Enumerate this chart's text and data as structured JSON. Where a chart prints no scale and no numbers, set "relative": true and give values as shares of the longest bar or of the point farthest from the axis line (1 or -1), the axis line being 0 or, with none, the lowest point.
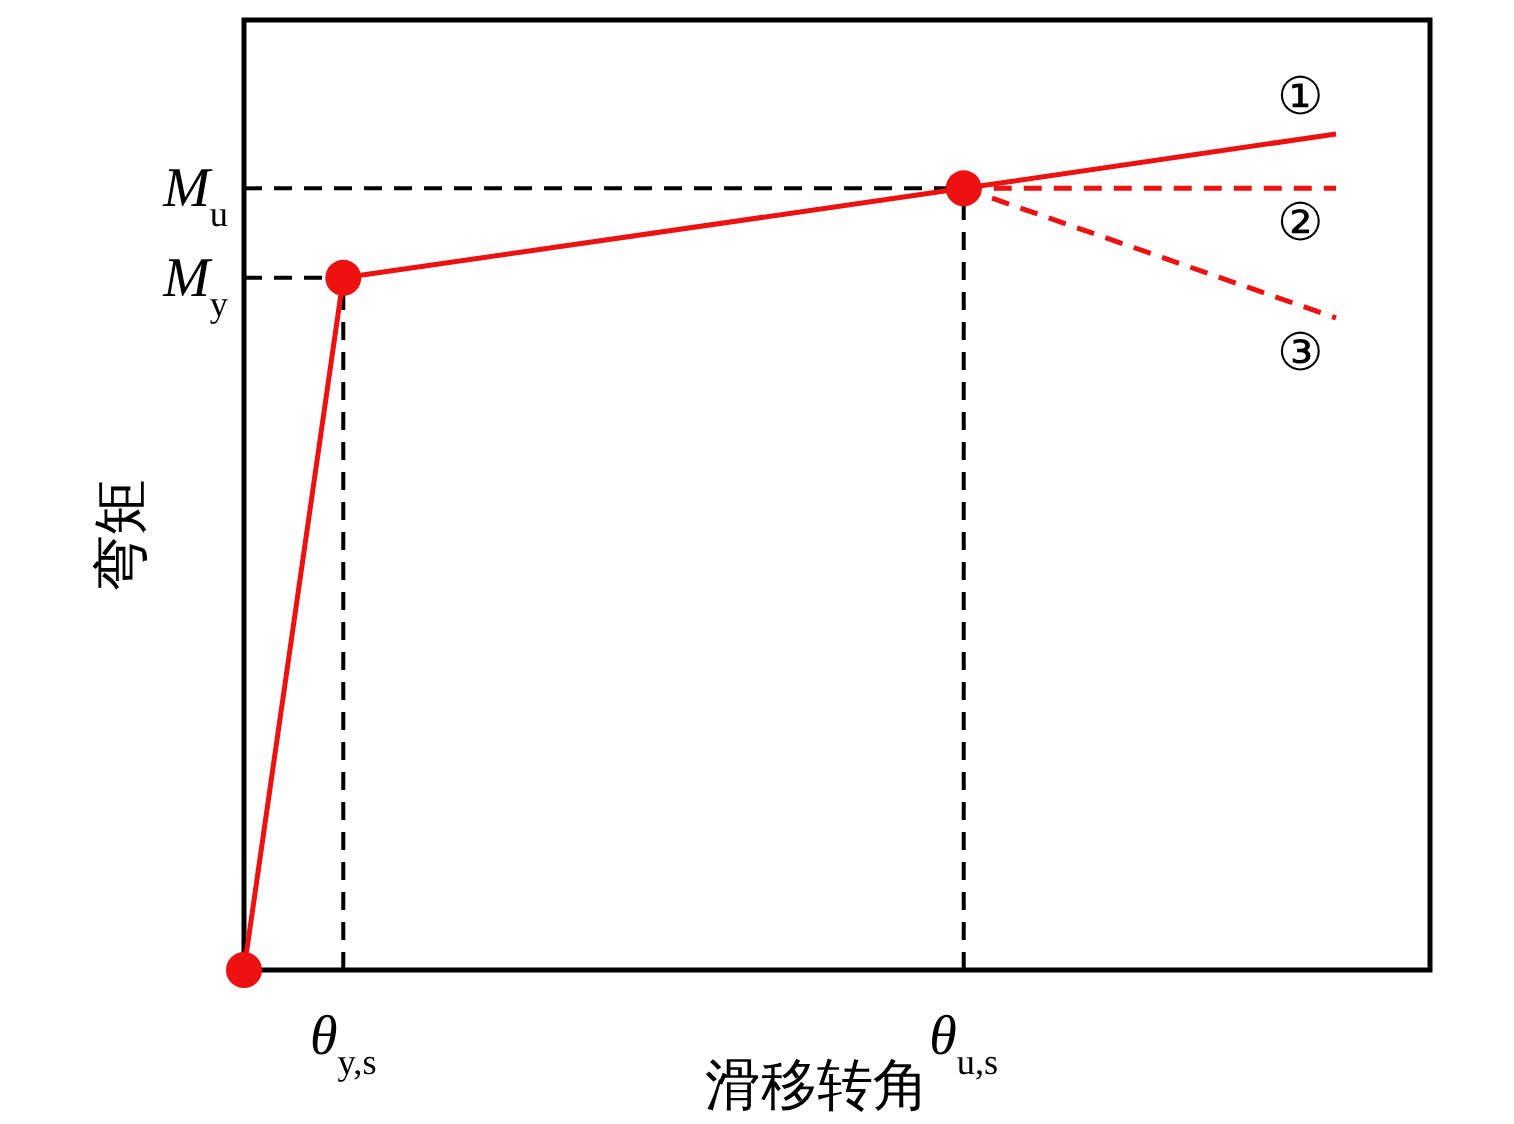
{
  "chart_data": {
    "type": "line",
    "relative": true,
    "xlabel": "滑移转角",
    "ylabel": "弯矩",
    "categories": [
      null,
      null,
      null,
      null,
      "θ$_{y,s}$",
      null,
      null,
      null,
      null,
      null,
      null,
      null,
      null,
      null,
      null,
      null,
      null,
      null,
      null,
      null,
      null,
      null,
      null,
      null,
      null,
      null,
      null,
      null,
      null,
      "θ$_{u,s}$",
      null,
      null,
      null,
      null,
      null,
      null,
      null,
      null,
      null,
      null,
      null,
      null,
      null,
      null,
      null
    ],
    "ref_lines": [
      {
        "axis": "y",
        "value": 0.828,
        "label": "M$_{y}$",
        "color": "#000000",
        "line_style": "dashed"
      },
      {
        "axis": "y",
        "value": 0.935,
        "label": "M$_{u}$",
        "color": "#000000",
        "line_style": "dashed"
      },
      {
        "axis": "x",
        "value": "θ$_{y,s}$",
        "color": "#000000",
        "line_style": "dashed"
      },
      {
        "axis": "x",
        "value": "θ$_{u,s}$",
        "color": "#000000",
        "line_style": "dashed"
      }
    ],
    "series": [
      {
        "color": "#ee1111",
        "line_style": "solid",
        "marker": "none",
        "name": "①",
        "values": [
          null,
          null,
          null,
          null,
          null,
          null,
          null,
          null,
          null,
          null,
          null,
          null,
          null,
          null,
          null,
          null,
          null,
          null,
          null,
          null,
          null,
          null,
          null,
          null,
          null,
          null,
          null,
          null,
          null,
          0.935,
          null,
          null,
          null,
          null,
          null,
          null,
          null,
          null,
          null,
          null,
          null,
          null,
          null,
          null,
          1
        ]
      },
      {
        "color": "#ee1111",
        "line_style": "dashed",
        "marker": "none",
        "name": "②",
        "values": [
          null,
          null,
          null,
          null,
          null,
          null,
          null,
          null,
          null,
          null,
          null,
          null,
          null,
          null,
          null,
          null,
          null,
          null,
          null,
          null,
          null,
          null,
          null,
          null,
          null,
          null,
          null,
          null,
          null,
          0.935,
          null,
          null,
          null,
          null,
          null,
          null,
          null,
          null,
          null,
          null,
          null,
          null,
          null,
          null,
          0.935
        ]
      },
      {
        "color": "#ee1111",
        "line_style": "dashed",
        "marker": "none",
        "name": "③",
        "values": [
          null,
          null,
          null,
          null,
          null,
          null,
          null,
          null,
          null,
          null,
          null,
          null,
          null,
          null,
          null,
          null,
          null,
          null,
          null,
          null,
          null,
          null,
          null,
          null,
          null,
          null,
          null,
          null,
          null,
          0.935,
          null,
          null,
          null,
          null,
          null,
          null,
          null,
          null,
          null,
          null,
          null,
          null,
          null,
          null,
          0.78
        ]
      },
      {
        "color": "#ee1111",
        "line_style": "solid",
        "marker": "circle",
        "values": [
          0,
          null,
          null,
          null,
          0.828,
          null,
          null,
          null,
          null,
          null,
          null,
          null,
          null,
          null,
          null,
          null,
          null,
          null,
          null,
          null,
          null,
          null,
          null,
          null,
          null,
          null,
          null,
          null,
          null,
          0.935,
          null,
          null,
          null,
          null,
          null,
          null,
          null,
          null,
          null,
          null,
          null,
          null,
          null,
          null,
          null
        ]
      }
    ]
  }
}
